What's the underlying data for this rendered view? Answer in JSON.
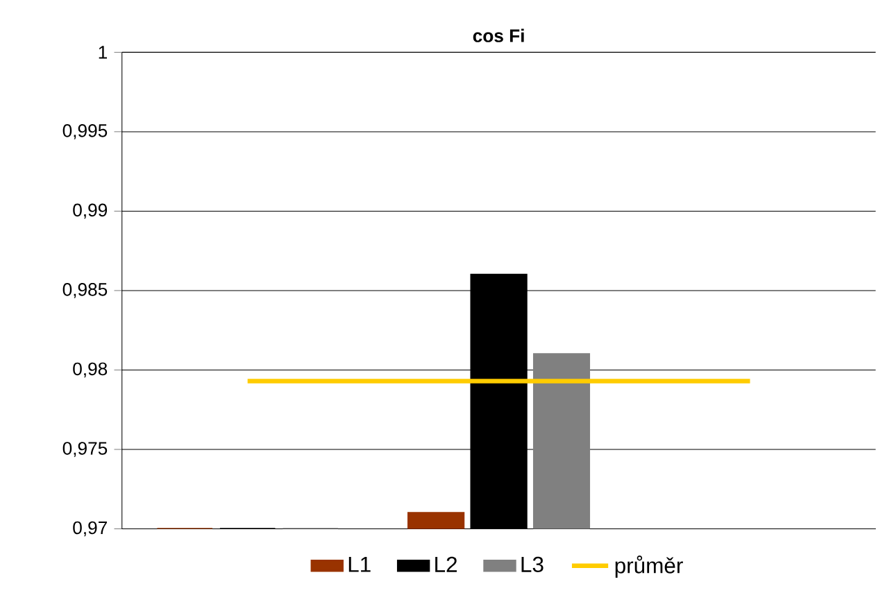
{
  "chart_data": {
    "type": "bar",
    "title": "cos Fi",
    "categories": [
      null,
      null,
      null
    ],
    "series": [
      {
        "name": "L1",
        "color": "#993300",
        "values": [
          0.97,
          0.971,
          null
        ]
      },
      {
        "name": "L2",
        "color": "#000000",
        "values": [
          0.97,
          0.986,
          null
        ]
      },
      {
        "name": "L3",
        "color": "#808080",
        "values": [
          0.97,
          0.981,
          null
        ]
      },
      {
        "name": "průměr",
        "type": "line",
        "color": "#ffcc00",
        "values": [
          0.9793,
          0.9793,
          0.9793
        ]
      }
    ],
    "ylim": [
      0.97,
      1
    ],
    "yticks": [
      {
        "value": 0.97,
        "label": "0,97"
      },
      {
        "value": 0.975,
        "label": "0,975"
      },
      {
        "value": 0.98,
        "label": "0,98"
      },
      {
        "value": 0.985,
        "label": "0,985"
      },
      {
        "value": 0.99,
        "label": "0,99"
      },
      {
        "value": 0.995,
        "label": "0,995"
      },
      {
        "value": 1,
        "label": "1"
      }
    ],
    "grid": "y",
    "legend": "bottom",
    "marker": "none"
  }
}
